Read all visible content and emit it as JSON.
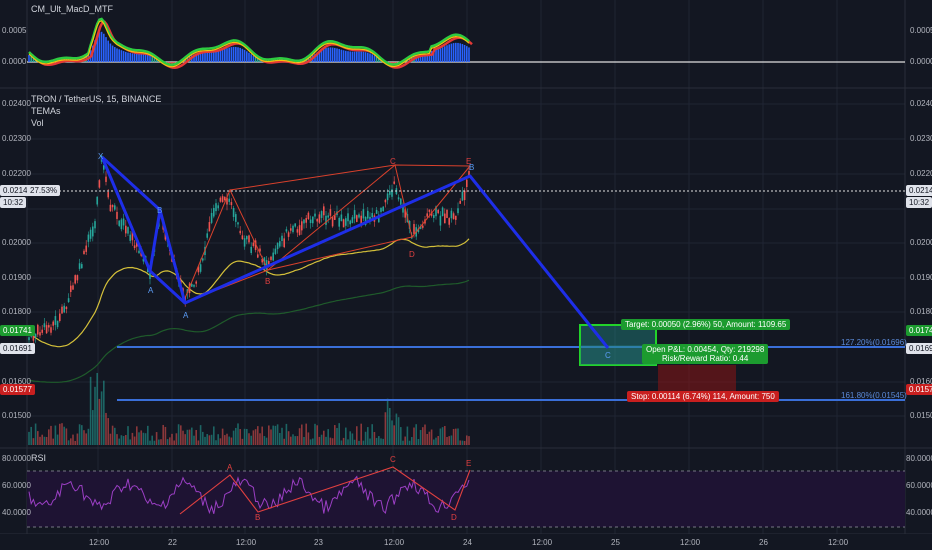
{
  "colors": {
    "background": "#131722",
    "grid": "#1f2433",
    "up": "#26a69a",
    "down": "#ef5350",
    "pattern_blue": "#1e2ee8",
    "fib_line": "#3a6fd8",
    "target_green": "#1c9b2f",
    "stop_red": "#c81f1f",
    "rsi_purple": "#8e44ad"
  },
  "macd_pane": {
    "title": "CM_Ult_MacD_MTF",
    "left_ticks": [
      "0.0005",
      "0.0000"
    ],
    "right_ticks": [
      "0.0005",
      "0.0000"
    ]
  },
  "main_pane": {
    "symbol_line": "TRON / TetherUS, 15, BINANCE",
    "study_1": "TEMAs",
    "study_2": "Vol",
    "left_ticks": [
      "0.02400",
      "0.02300",
      "0.02200",
      "0.02100",
      "0.02000",
      "0.01900",
      "0.01800",
      "0.01700",
      "0.01600",
      "0.01500"
    ],
    "right_ticks": [
      "0.02400",
      "0.02300",
      "0.02200",
      "0.02100",
      "0.02000",
      "0.01900",
      "0.01800",
      "0.01700",
      "0.01600",
      "0.01500"
    ],
    "price_tag_left": "0.02145",
    "price_pct": "27.53%",
    "countdown": "10:32",
    "price_tag_right": "0.02145",
    "countdown_right": "10:32",
    "target_tag": "0.01741",
    "entry_tag": "0.01691",
    "stop_tag": "0.01577",
    "target_tag_right": "0.01741",
    "entry_tag_right": "0.01691",
    "stop_tag_right": "0.01577",
    "fib_1": "127.20%(0.01696)",
    "fib_2": "161.80%(0.01545)",
    "target_box": "Target: 0.00050 (2.96%) 50, Amount: 1109.65",
    "pnl_box_1": "Open P&L: 0.00454, Qty: 219298",
    "pnl_box_2": "Risk/Reward Ratio: 0.44",
    "stop_box": "Stop: 0.00114 (6.74%) 114, Amount: 750",
    "pattern_labels": {
      "X": "X",
      "A1": "A",
      "B1": "B",
      "C1": "C",
      "A2": "A",
      "B2": "B",
      "C2": "C",
      "D": "D",
      "E": "E",
      "B3": "B",
      "C3": "C"
    }
  },
  "rsi_pane": {
    "title": "RSI",
    "left_ticks": [
      "80.0000",
      "60.0000",
      "40.0000"
    ],
    "right_ticks": [
      "80.0000",
      "60.0000",
      "40.0000"
    ],
    "labels": {
      "A": "A",
      "B": "B",
      "C": "C",
      "D": "D",
      "E": "E"
    }
  },
  "time_axis": [
    "12:00",
    "22",
    "12:00",
    "23",
    "12:00",
    "24",
    "12:00",
    "25",
    "12:00",
    "26",
    "12:00"
  ]
}
